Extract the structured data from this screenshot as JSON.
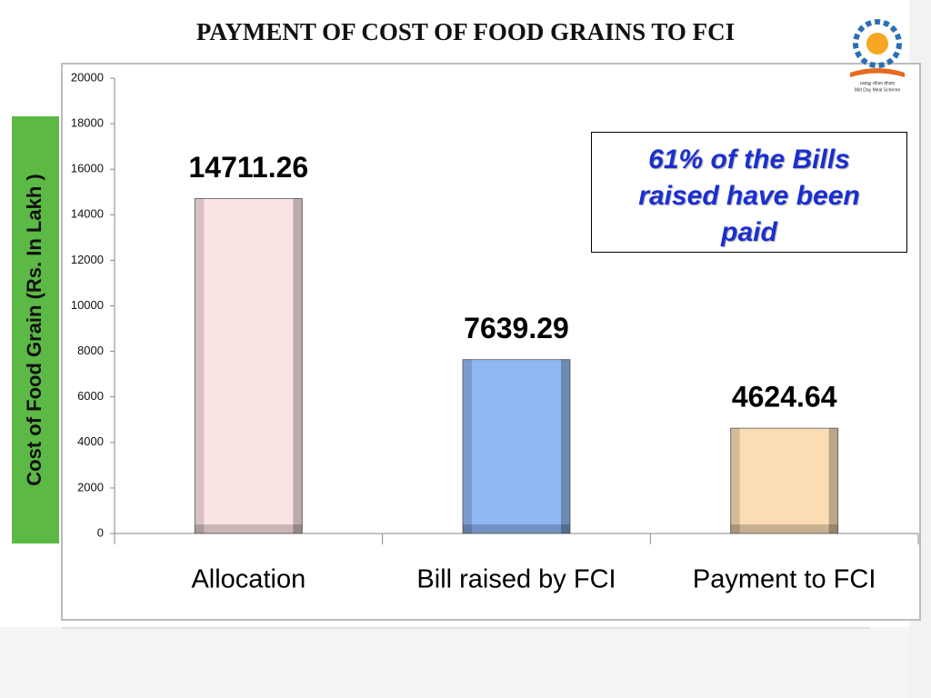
{
  "chart_data": {
    "type": "bar",
    "title": "PAYMENT OF COST OF FOOD GRAINS TO FCI",
    "y_label": "Cost of Food Grain (Rs. In Lakh )",
    "categories": [
      "Allocation",
      "Bill raised by FCI",
      "Payment to FCI"
    ],
    "values": [
      14711.26,
      7639.29,
      4624.64
    ],
    "colors": [
      "#fde4e4",
      "#8fb8f2",
      "#fcdcb4"
    ],
    "ylim": [
      0,
      20000
    ],
    "yticks": [
      0,
      2000,
      4000,
      6000,
      8000,
      10000,
      12000,
      14000,
      16000,
      18000,
      20000
    ],
    "annotation": "61% of the Bills raised have been paid",
    "logo_text": [
      "मध्याह्न भोजन योजना",
      "Mid Day Meal Scheme"
    ]
  }
}
